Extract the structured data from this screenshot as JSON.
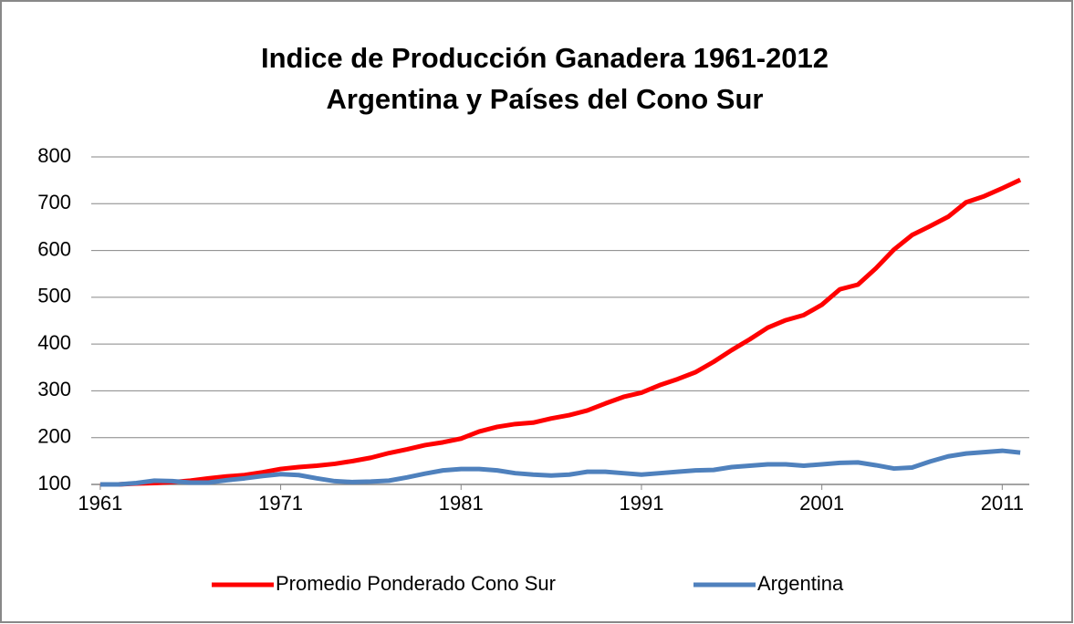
{
  "chart_data": {
    "type": "line",
    "title": [
      "Indice de Producción Ganadera 1961-2012",
      "Argentina y Países del Cono Sur"
    ],
    "x": [
      1961,
      1962,
      1963,
      1964,
      1965,
      1966,
      1967,
      1968,
      1969,
      1970,
      1971,
      1972,
      1973,
      1974,
      1975,
      1976,
      1977,
      1978,
      1979,
      1980,
      1981,
      1982,
      1983,
      1984,
      1985,
      1986,
      1987,
      1988,
      1989,
      1990,
      1991,
      1992,
      1993,
      1994,
      1995,
      1996,
      1997,
      1998,
      1999,
      2000,
      2001,
      2002,
      2003,
      2004,
      2005,
      2006,
      2007,
      2008,
      2009,
      2010,
      2011,
      2012
    ],
    "series": [
      {
        "name": "Promedio Ponderado Cono Sur",
        "color": "#ff0000",
        "values": [
          100,
          100,
          102,
          103,
          105,
          108,
          113,
          117,
          120,
          126,
          133,
          137,
          140,
          144,
          150,
          157,
          167,
          175,
          184,
          190,
          198,
          213,
          223,
          229,
          232,
          241,
          248,
          258,
          273,
          287,
          296,
          312,
          325,
          340,
          362,
          387,
          410,
          435,
          451,
          462,
          484,
          517,
          527,
          562,
          602,
          633,
          652,
          672,
          703,
          716,
          733,
          751
        ]
      },
      {
        "name": "Argentina",
        "color": "#4f81bd",
        "values": [
          100,
          100,
          103,
          108,
          107,
          104,
          104,
          109,
          113,
          118,
          122,
          120,
          113,
          107,
          105,
          106,
          108,
          115,
          123,
          130,
          133,
          133,
          130,
          124,
          121,
          119,
          121,
          127,
          127,
          124,
          121,
          124,
          127,
          130,
          131,
          137,
          140,
          143,
          143,
          140,
          143,
          146,
          147,
          141,
          134,
          136,
          149,
          160,
          166,
          169,
          172,
          168
        ]
      }
    ],
    "xlim": [
      1960.5,
      2012.5
    ],
    "xticks": [
      1961,
      1971,
      1981,
      1991,
      2001,
      2011
    ],
    "ylim": [
      100,
      800
    ],
    "yticks": [
      100,
      200,
      300,
      400,
      500,
      600,
      700,
      800
    ],
    "grid": true,
    "legend": "bottom"
  }
}
